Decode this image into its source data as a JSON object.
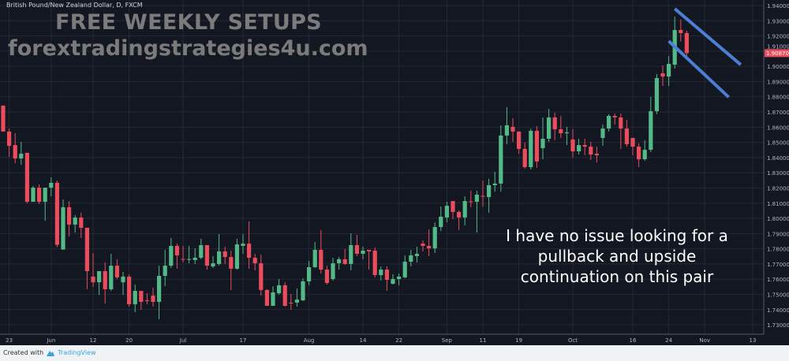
{
  "header": {
    "symbol": "British Pound/New Zealand Dollar, D, FXCM"
  },
  "watermark": {
    "line1": "FREE WEEKLY SETUPS",
    "line2": "forextradingstrategies4u.com"
  },
  "annotation": {
    "lines": [
      "I have no issue looking for a",
      "pullback and upside",
      "continuation on this pair"
    ]
  },
  "footer": {
    "created_with": "Created with",
    "brand": "TradingView"
  },
  "colors": {
    "background": "#131722",
    "grid": "#242832",
    "up": "#53b987",
    "down": "#eb4d5c",
    "trendline": "#4a7fd4",
    "axis_text": "#b2b5be"
  },
  "chart_data": {
    "type": "candlestick",
    "title": "British Pound/New Zealand Dollar, D, FXCM",
    "ylim": [
      1.725,
      1.943
    ],
    "grid": true,
    "y_ticks": [
      "1.94000",
      "1.93000",
      "1.92000",
      "1.91000",
      "1.90000",
      "1.89000",
      "1.88000",
      "1.87000",
      "1.86000",
      "1.85000",
      "1.84000",
      "1.83000",
      "1.82000",
      "1.81000",
      "1.80000",
      "1.79000",
      "1.78000",
      "1.77000",
      "1.76000",
      "1.75000",
      "1.74000",
      "1.73000"
    ],
    "last_price": "1.90870",
    "x_ticks": [
      {
        "label": "23",
        "date": "2017-05-23"
      },
      {
        "label": "Jun",
        "date": "2017-06-01"
      },
      {
        "label": "12",
        "date": "2017-06-12"
      },
      {
        "label": "20",
        "date": "2017-06-20"
      },
      {
        "label": "Jul",
        "date": "2017-07-03"
      },
      {
        "label": "17",
        "date": "2017-07-17"
      },
      {
        "label": "Aug",
        "date": "2017-08-01"
      },
      {
        "label": "14",
        "date": "2017-08-14"
      },
      {
        "label": "22",
        "date": "2017-08-22"
      },
      {
        "label": "Sep",
        "date": "2017-09-01"
      },
      {
        "label": "11",
        "date": "2017-09-11"
      },
      {
        "label": "19",
        "date": "2017-09-19"
      },
      {
        "label": "Oct",
        "date": "2017-10-02"
      },
      {
        "label": "16",
        "date": "2017-10-16"
      },
      {
        "label": "24",
        "date": "2017-10-24"
      },
      {
        "label": "Nov",
        "date": "2017-11-01"
      },
      {
        "label": "13",
        "date": "2017-11-13"
      }
    ],
    "columns": [
      "date",
      "open",
      "high",
      "low",
      "close"
    ],
    "candles": [
      [
        "2017-05-22",
        1.8742,
        1.8742,
        1.8571,
        1.8571
      ],
      [
        "2017-05-23",
        1.8571,
        1.8591,
        1.8405,
        1.8477
      ],
      [
        "2017-05-24",
        1.8482,
        1.856,
        1.8363,
        1.8394
      ],
      [
        "2017-05-25",
        1.8394,
        1.8503,
        1.8353,
        1.8425
      ],
      [
        "2017-05-26",
        1.8431,
        1.8431,
        1.8099,
        1.8109
      ],
      [
        "2017-05-29",
        1.8109,
        1.8213,
        1.8109,
        1.8202
      ],
      [
        "2017-05-30",
        1.8202,
        1.8223,
        1.8094,
        1.8109
      ],
      [
        "2017-05-31",
        1.8109,
        1.8202,
        1.7985,
        1.8202
      ],
      [
        "2017-06-01",
        1.8202,
        1.827,
        1.8145,
        1.8234
      ],
      [
        "2017-06-02",
        1.8234,
        1.8249,
        1.7811,
        1.7826
      ],
      [
        "2017-06-05",
        1.7795,
        1.8125,
        1.7795,
        1.8073
      ],
      [
        "2017-06-06",
        1.8073,
        1.8114,
        1.7881,
        1.7959
      ],
      [
        "2017-06-07",
        1.7959,
        1.8021,
        1.7907,
        1.8006
      ],
      [
        "2017-06-08",
        1.8006,
        1.8037,
        1.7871,
        1.7938
      ],
      [
        "2017-06-09",
        1.7938,
        1.7938,
        1.7534,
        1.7653
      ],
      [
        "2017-06-12",
        1.7617,
        1.7772,
        1.7549,
        1.758
      ],
      [
        "2017-06-13",
        1.758,
        1.7653,
        1.7497,
        1.7653
      ],
      [
        "2017-06-14",
        1.7653,
        1.771,
        1.744,
        1.7534
      ],
      [
        "2017-06-15",
        1.7534,
        1.7767,
        1.7523,
        1.7689
      ],
      [
        "2017-06-16",
        1.7689,
        1.7731,
        1.7601,
        1.7612
      ],
      [
        "2017-06-19",
        1.758,
        1.7648,
        1.7497,
        1.7617
      ],
      [
        "2017-06-20",
        1.7617,
        1.7632,
        1.742,
        1.7435
      ],
      [
        "2017-06-21",
        1.7435,
        1.7565,
        1.7383,
        1.7523
      ],
      [
        "2017-06-22",
        1.7523,
        1.7523,
        1.7399,
        1.7451
      ],
      [
        "2017-06-23",
        1.7461,
        1.7508,
        1.7435,
        1.7458
      ],
      [
        "2017-06-26",
        1.7492,
        1.7544,
        1.742,
        1.7451
      ],
      [
        "2017-06-27",
        1.7451,
        1.7689,
        1.7337,
        1.7622
      ],
      [
        "2017-06-28",
        1.7622,
        1.7793,
        1.7554,
        1.7689
      ],
      [
        "2017-06-29",
        1.7689,
        1.7871,
        1.7674,
        1.7819
      ],
      [
        "2017-06-30",
        1.7819,
        1.7834,
        1.7669,
        1.7757
      ],
      [
        "2017-07-03",
        1.7733,
        1.7819,
        1.771,
        1.7731
      ],
      [
        "2017-07-04",
        1.7731,
        1.7819,
        1.7705,
        1.7733
      ],
      [
        "2017-07-05",
        1.7726,
        1.7803,
        1.77,
        1.7741
      ],
      [
        "2017-07-06",
        1.7741,
        1.7866,
        1.7731,
        1.7824
      ],
      [
        "2017-07-07",
        1.7824,
        1.7824,
        1.7663,
        1.7689
      ],
      [
        "2017-07-10",
        1.7684,
        1.7752,
        1.7674,
        1.7705
      ],
      [
        "2017-07-11",
        1.77,
        1.7897,
        1.7689,
        1.7783
      ],
      [
        "2017-07-12",
        1.7783,
        1.7814,
        1.77,
        1.7746
      ],
      [
        "2017-07-13",
        1.7746,
        1.7788,
        1.7529,
        1.7669
      ],
      [
        "2017-07-14",
        1.7669,
        1.7866,
        1.7663,
        1.7829
      ],
      [
        "2017-07-17",
        1.7819,
        1.7897,
        1.7767,
        1.7834
      ],
      [
        "2017-07-18",
        1.7834,
        1.798,
        1.7669,
        1.7741
      ],
      [
        "2017-07-19",
        1.7741,
        1.7767,
        1.7658,
        1.7705
      ],
      [
        "2017-07-20",
        1.7705,
        1.7762,
        1.7492,
        1.7529
      ],
      [
        "2017-07-21",
        1.7529,
        1.7534,
        1.7425,
        1.7425
      ],
      [
        "2017-07-24",
        1.7425,
        1.7554,
        1.7425,
        1.7513
      ],
      [
        "2017-07-25",
        1.7508,
        1.7601,
        1.7497,
        1.756
      ],
      [
        "2017-07-26",
        1.756,
        1.758,
        1.742,
        1.7425
      ],
      [
        "2017-07-27",
        1.7446,
        1.7503,
        1.7399,
        1.7444
      ],
      [
        "2017-07-28",
        1.7446,
        1.7539,
        1.742,
        1.7466
      ],
      [
        "2017-07-31",
        1.7461,
        1.7606,
        1.7456,
        1.7586
      ],
      [
        "2017-08-01",
        1.7586,
        1.772,
        1.756,
        1.7679
      ],
      [
        "2017-08-02",
        1.7679,
        1.7845,
        1.7674,
        1.7793
      ],
      [
        "2017-08-03",
        1.7793,
        1.7923,
        1.7637,
        1.7663
      ],
      [
        "2017-08-04",
        1.7663,
        1.7689,
        1.7565,
        1.7575
      ],
      [
        "2017-08-07",
        1.7601,
        1.7741,
        1.7591,
        1.7705
      ],
      [
        "2017-08-08",
        1.7705,
        1.7746,
        1.7663,
        1.7731
      ],
      [
        "2017-08-09",
        1.7731,
        1.7798,
        1.7694,
        1.77
      ],
      [
        "2017-08-10",
        1.77,
        1.7902,
        1.7658,
        1.7824
      ],
      [
        "2017-08-11",
        1.7824,
        1.7892,
        1.7752,
        1.7767
      ],
      [
        "2017-08-14",
        1.7767,
        1.7814,
        1.7731,
        1.7788
      ],
      [
        "2017-08-15",
        1.7793,
        1.7793,
        1.7663,
        1.7783
      ],
      [
        "2017-08-16",
        1.7788,
        1.7809,
        1.7612,
        1.7627
      ],
      [
        "2017-08-17",
        1.7627,
        1.7684,
        1.7591,
        1.7663
      ],
      [
        "2017-08-18",
        1.7663,
        1.7684,
        1.7524,
        1.7596
      ],
      [
        "2017-08-21",
        1.757,
        1.7632,
        1.7565,
        1.7601
      ],
      [
        "2017-08-22",
        1.7601,
        1.7637,
        1.756,
        1.7617
      ],
      [
        "2017-08-23",
        1.7612,
        1.7757,
        1.7606,
        1.7715
      ],
      [
        "2017-08-24",
        1.7715,
        1.7793,
        1.7684,
        1.7757
      ],
      [
        "2017-08-25",
        1.7752,
        1.7814,
        1.771,
        1.7767
      ],
      [
        "2017-08-28",
        1.7834,
        1.7855,
        1.7783,
        1.7819
      ],
      [
        "2017-08-29",
        1.7819,
        1.7928,
        1.7752,
        1.7803
      ],
      [
        "2017-08-30",
        1.7803,
        1.7974,
        1.7772,
        1.7943
      ],
      [
        "2017-08-31",
        1.7943,
        1.8078,
        1.7917,
        1.8011
      ],
      [
        "2017-09-01",
        1.8006,
        1.8109,
        1.7974,
        1.8083
      ],
      [
        "2017-09-04",
        1.8114,
        1.8114,
        1.7995,
        1.8042
      ],
      [
        "2017-09-05",
        1.8042,
        1.8052,
        1.7923,
        1.8006
      ],
      [
        "2017-09-06",
        1.8006,
        1.8145,
        1.7954,
        1.8114
      ],
      [
        "2017-09-07",
        1.8112,
        1.8182,
        1.8073,
        1.8109
      ],
      [
        "2017-09-08",
        1.8109,
        1.8182,
        1.7907,
        1.8156
      ],
      [
        "2017-09-11",
        1.8148,
        1.8249,
        1.8078,
        1.8145
      ],
      [
        "2017-09-12",
        1.814,
        1.826,
        1.8037,
        1.8218
      ],
      [
        "2017-09-13",
        1.8218,
        1.8306,
        1.8176,
        1.8229
      ],
      [
        "2017-09-14",
        1.8229,
        1.8612,
        1.8176,
        1.8545
      ],
      [
        "2017-09-15",
        1.8545,
        1.8731,
        1.8488,
        1.8612
      ],
      [
        "2017-09-18",
        1.8602,
        1.8659,
        1.8503,
        1.8571
      ],
      [
        "2017-09-19",
        1.8571,
        1.8571,
        1.8425,
        1.8457
      ],
      [
        "2017-09-20",
        1.8457,
        1.8498,
        1.8327,
        1.8337
      ],
      [
        "2017-09-21",
        1.8337,
        1.8591,
        1.8322,
        1.8576
      ],
      [
        "2017-09-22",
        1.8576,
        1.8607,
        1.8332,
        1.8374
      ],
      [
        "2017-09-25",
        1.8462,
        1.8664,
        1.8389,
        1.8524
      ],
      [
        "2017-09-26",
        1.8524,
        1.8721,
        1.8503,
        1.8664
      ],
      [
        "2017-09-27",
        1.8664,
        1.8695,
        1.8514,
        1.8586
      ],
      [
        "2017-09-28",
        1.8586,
        1.8674,
        1.8529,
        1.856
      ],
      [
        "2017-09-29",
        1.856,
        1.8602,
        1.8482,
        1.8566
      ],
      [
        "2017-10-02",
        1.8519,
        1.8586,
        1.84,
        1.8441
      ],
      [
        "2017-10-03",
        1.8441,
        1.8524,
        1.842,
        1.8482
      ],
      [
        "2017-10-04",
        1.8482,
        1.8524,
        1.8415,
        1.8472
      ],
      [
        "2017-10-05",
        1.8472,
        1.8503,
        1.8384,
        1.842
      ],
      [
        "2017-10-06",
        1.8425,
        1.8472,
        1.8368,
        1.8415
      ],
      [
        "2017-10-09",
        1.8529,
        1.8617,
        1.8477,
        1.8591
      ],
      [
        "2017-10-10",
        1.8591,
        1.8685,
        1.8571,
        1.8674
      ],
      [
        "2017-10-11",
        1.8674,
        1.869,
        1.8617,
        1.8664
      ],
      [
        "2017-10-12",
        1.8664,
        1.869,
        1.8457,
        1.8591
      ],
      [
        "2017-10-13",
        1.8591,
        1.8648,
        1.8472,
        1.8488
      ],
      [
        "2017-10-16",
        1.8529,
        1.8529,
        1.8415,
        1.8472
      ],
      [
        "2017-10-17",
        1.8472,
        1.8493,
        1.8337,
        1.8389
      ],
      [
        "2017-10-18",
        1.8389,
        1.8514,
        1.8379,
        1.8451
      ],
      [
        "2017-10-19",
        1.8451,
        1.8799,
        1.8436,
        1.8705
      ],
      [
        "2017-10-20",
        1.8705,
        1.8949,
        1.8685,
        1.8923
      ],
      [
        "2017-10-23",
        1.8954,
        1.9006,
        1.8871,
        1.8933
      ],
      [
        "2017-10-24",
        1.8933,
        1.9068,
        1.8871,
        1.9016
      ],
      [
        "2017-10-25",
        1.9011,
        1.9327,
        1.8985,
        1.9239
      ],
      [
        "2017-10-26",
        1.9239,
        1.9307,
        1.9162,
        1.9219
      ],
      [
        "2017-10-27",
        1.9219,
        1.9234,
        1.9058,
        1.9087
      ]
    ],
    "trendlines": [
      {
        "from": {
          "date": "2017-10-25",
          "price": 1.9379
        },
        "to": {
          "date": "2017-11-09",
          "price": 1.9011
        }
      },
      {
        "from": {
          "date": "2017-10-24",
          "price": 1.9166
        },
        "to": {
          "date": "2017-11-07",
          "price": 1.8797
        }
      }
    ]
  }
}
